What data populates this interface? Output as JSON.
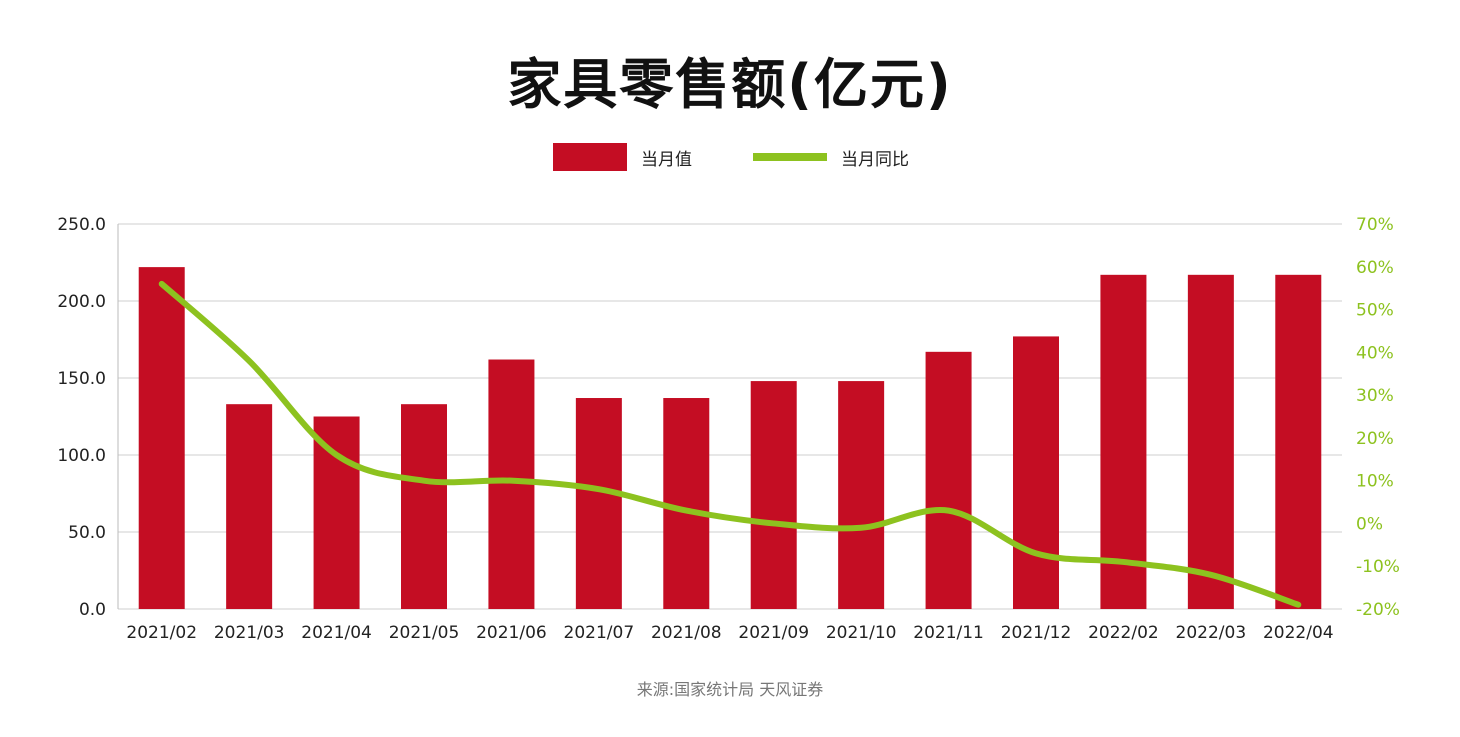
{
  "colors": {
    "bar": "#c40d23",
    "line": "#8dc21f",
    "grid": "#cfcfcf",
    "axis_text": "#222222",
    "right_axis_text": "#8dc21f"
  },
  "title": "家具零售额(亿元)",
  "legend": {
    "bar_label": "当月值",
    "line_label": "当月同比",
    "position": "top-center"
  },
  "source": "来源:国家统计局 天风证券",
  "chart_data": {
    "type": "bar",
    "title": "家具零售额(亿元)",
    "categories": [
      "2021/02",
      "2021/03",
      "2021/04",
      "2021/05",
      "2021/06",
      "2021/07",
      "2021/08",
      "2021/09",
      "2021/10",
      "2021/11",
      "2021/12",
      "2022/02",
      "2022/03",
      "2022/04"
    ],
    "series": [
      {
        "name": "当月值",
        "type": "bar",
        "axis": "left",
        "values": [
          222,
          133,
          125,
          133,
          162,
          137,
          137,
          148,
          148,
          167,
          177,
          217,
          217,
          217
        ]
      },
      {
        "name": "当月同比",
        "type": "line",
        "axis": "right",
        "unit": "%",
        "values": [
          56,
          38,
          16,
          10,
          10,
          8,
          3,
          0,
          -1,
          3,
          -7,
          -9,
          -12,
          -19
        ]
      }
    ],
    "y_left": {
      "ticks": [
        "0.0",
        "50.0",
        "100.0",
        "150.0",
        "200.0",
        "250.0"
      ],
      "ylim": [
        0,
        250
      ]
    },
    "y_right": {
      "ticks": [
        "-20%",
        "-10%",
        "0%",
        "10%",
        "20%",
        "30%",
        "40%",
        "50%",
        "60%",
        "70%"
      ],
      "ylim": [
        -20,
        70
      ]
    },
    "grid": true
  }
}
